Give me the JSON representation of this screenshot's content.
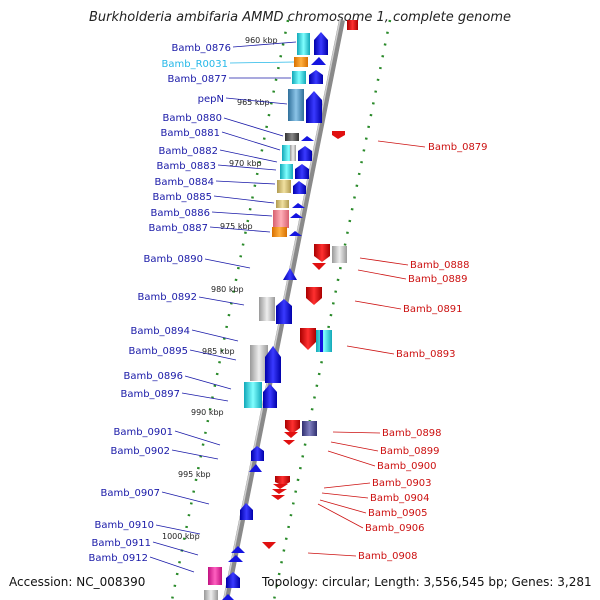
{
  "title": "Burkholderia ambifaria AMMD chromosome 1, complete genome",
  "accession": "Accession: NC_008390",
  "topology": "Topology: circular; Length: 3,556,545 bp; Genes: 3,281",
  "scale": [
    "960 kbp",
    "965 kbp",
    "970 kbp",
    "975 kbp",
    "980 kbp",
    "985 kbp",
    "990 kbp",
    "995 kbp",
    "1000 kbp"
  ],
  "left_genes": [
    "Bamb_0876",
    "Bamb_R0031",
    "Bamb_0877",
    "pepN",
    "Bamb_0880",
    "Bamb_0881",
    "Bamb_0882",
    "Bamb_0883",
    "Bamb_0884",
    "Bamb_0885",
    "Bamb_0886",
    "Bamb_0887",
    "Bamb_0890",
    "Bamb_0892",
    "Bamb_0894",
    "Bamb_0895",
    "Bamb_0896",
    "Bamb_0897",
    "Bamb_0901",
    "Bamb_0902",
    "Bamb_0907",
    "Bamb_0910",
    "Bamb_0911",
    "Bamb_0912"
  ],
  "right_genes": [
    "Bamb_0879",
    "Bamb_0888",
    "Bamb_0889",
    "Bamb_0891",
    "Bamb_0893",
    "Bamb_0898",
    "Bamb_0899",
    "Bamb_0900",
    "Bamb_0903",
    "Bamb_0904",
    "Bamb_0905",
    "Bamb_0906",
    "Bamb_0908"
  ],
  "colors": {
    "forward": "#1515e0",
    "reverse": "#e01010",
    "backbone": "#8a8a8a",
    "ticks": "#2a8a2a",
    "rna": "#25b8e8"
  }
}
